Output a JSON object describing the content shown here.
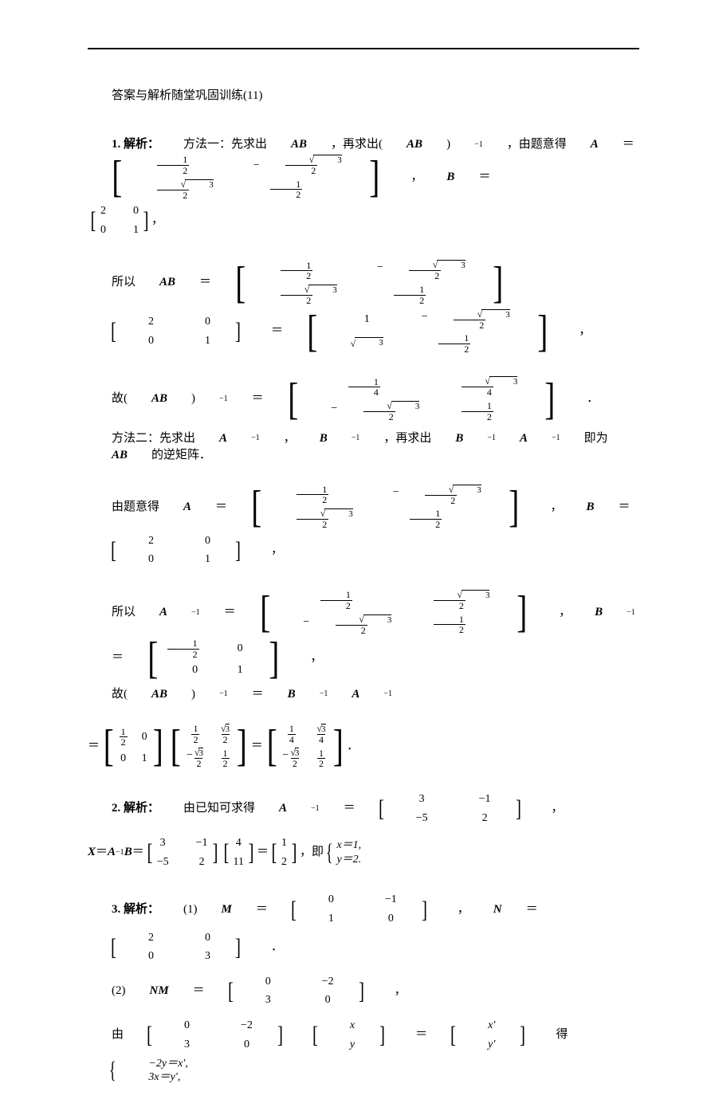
{
  "header": "答案与解析随堂巩固训练(11)",
  "p1": {
    "label": "1. 解析：",
    "t1": "方法一：先求出 ",
    "AB": "AB",
    "t2": "，再求出(",
    "t3": ")",
    "inv": "−1",
    "t4": "，由题意得 ",
    "A": "A",
    "eq": "＝",
    "comma": "，",
    "B": "B",
    "matA": [
      [
        "1",
        "2"
      ],
      [
        "",
        "√3",
        "2",
        true
      ],
      [
        "√3",
        "2"
      ],
      [
        "1",
        "2"
      ]
    ],
    "matB": {
      "rows": [
        [
          "2",
          "0"
        ],
        [
          "0",
          "1"
        ]
      ]
    }
  },
  "p2_pre": "所以 ",
  "p2_AB": "AB",
  "p2_eq": "＝",
  "p3_pre": "故(",
  "p3_mid": ")",
  "p3_inv": "−1",
  "p3_eq": "＝",
  "p3_end": "．",
  "p4": "方法二：先求出 ",
  "p4_a": "A",
  "p4_inv": "−1",
  "p4_c1": "，",
  "p4_b": "B",
  "p4_t2": "，再求出 ",
  "p4_t3": " 即为 ",
  "p4_t4": " 的逆矩阵．",
  "p5_pre": "由题意得 ",
  "p6_pre": "所以 ",
  "p7_pre": "故(",
  "p7_mid": ")",
  "q2": {
    "label": "2. 解析：",
    "t1": "由已知可求得 ",
    "Ainv": "A",
    "inv": "−1",
    "eq": "＝",
    "c": "，",
    "m1": {
      "rows": [
        [
          "3",
          "−1"
        ],
        [
          "−5",
          "2"
        ]
      ]
    }
  },
  "q2b": {
    "X": "X",
    "eq": "＝",
    "A": "A",
    "inv": "−1",
    "B": "B",
    "m2": {
      "rows": [
        [
          "4"
        ],
        [
          "11"
        ]
      ]
    },
    "m3": {
      "rows": [
        [
          "1"
        ],
        [
          "2"
        ]
      ]
    },
    "t": "，即",
    "sys": [
      "x＝1,",
      "y＝2."
    ]
  },
  "q3": {
    "label": "3. 解析：",
    "p1": "(1) ",
    "M": "M",
    "N": "N",
    "eq": "＝",
    "c": "，",
    "dot": "．",
    "mM": {
      "rows": [
        [
          "0",
          "−1"
        ],
        [
          "1",
          "0"
        ]
      ]
    },
    "mN": {
      "rows": [
        [
          "2",
          "0"
        ],
        [
          "0",
          "3"
        ]
      ]
    }
  },
  "q3b": {
    "p": "(2) ",
    "NM": "NM",
    "eq": "＝",
    "c": "，",
    "m": {
      "rows": [
        [
          "0",
          "−2"
        ],
        [
          "3",
          "0"
        ]
      ]
    }
  },
  "q3c": {
    "p": "由",
    "m1": {
      "rows": [
        [
          "0",
          "−2"
        ],
        [
          "3",
          "0"
        ]
      ]
    },
    "m2": {
      "rows": [
        [
          "x"
        ],
        [
          "y"
        ]
      ]
    },
    "eq": "＝",
    "m3": {
      "rows": [
        [
          "x′"
        ],
        [
          "y′"
        ]
      ]
    },
    "t": "得",
    "sys": [
      "−2y＝x′,",
      "3x＝y′,"
    ]
  },
  "common": {
    "comma_cn": "，"
  }
}
